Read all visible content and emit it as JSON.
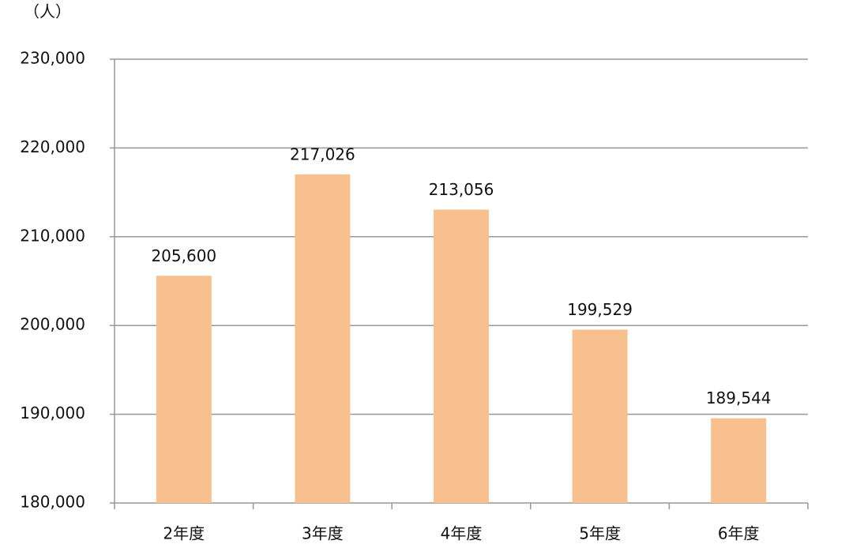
{
  "chart_data": {
    "type": "bar",
    "y_axis_label": "（人）",
    "categories": [
      "2年度",
      "3年度",
      "4年度",
      "5年度",
      "6年度"
    ],
    "values": [
      205600,
      217026,
      213056,
      199529,
      189544
    ],
    "value_labels": [
      "205,600",
      "217,026",
      "213,056",
      "199,529",
      "189,544"
    ],
    "color": "#f8c08f",
    "ylim": [
      180000,
      230000
    ],
    "yticks": [
      {
        "value": 180000,
        "label": "180,000"
      },
      {
        "value": 190000,
        "label": "190,000"
      },
      {
        "value": 200000,
        "label": "200,000"
      },
      {
        "value": 210000,
        "label": "210,000"
      },
      {
        "value": 220000,
        "label": "220,000"
      },
      {
        "value": 230000,
        "label": "230,000"
      }
    ],
    "grid": true
  }
}
